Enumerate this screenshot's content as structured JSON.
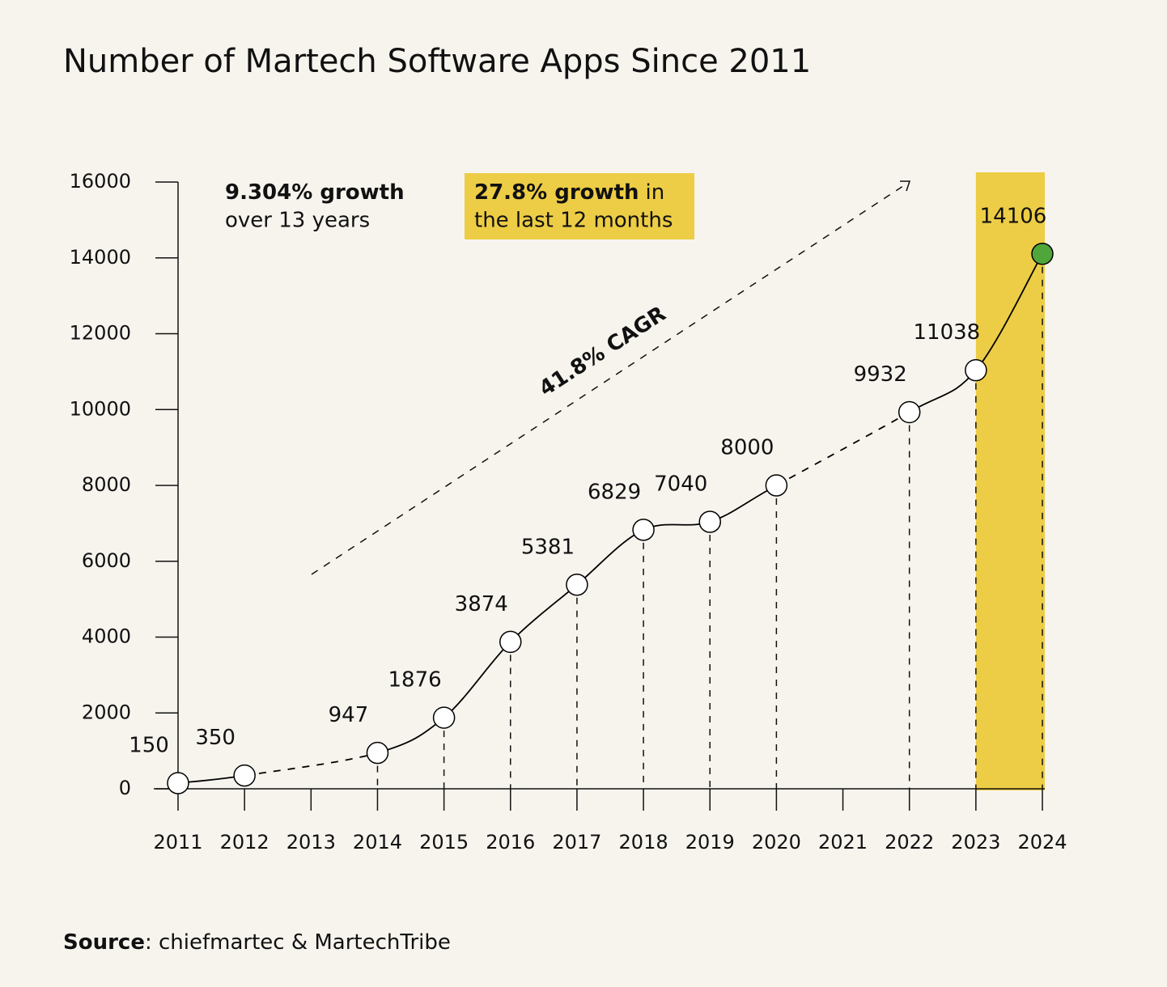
{
  "chart_data": {
    "type": "line",
    "title": "Number of Martech Software Apps Since 2011",
    "x": [
      2011,
      2012,
      2014,
      2015,
      2016,
      2017,
      2018,
      2019,
      2020,
      2022,
      2023,
      2024
    ],
    "series": [
      {
        "values": [
          150,
          350,
          947,
          1876,
          3874,
          5381,
          6829,
          7040,
          8000,
          9932,
          11038,
          14106
        ],
        "color": "#000000",
        "point_color": "#ffffff",
        "last_point_color": "#4fa63a"
      }
    ],
    "xlim": [
      2011,
      2024
    ],
    "xticks": [
      2011,
      2012,
      2013,
      2014,
      2015,
      2016,
      2017,
      2018,
      2019,
      2020,
      2021,
      2022,
      2023,
      2024
    ],
    "ylim": [
      0,
      16000
    ],
    "yticks": [
      0,
      2000,
      4000,
      6000,
      8000,
      10000,
      12000,
      14000,
      16000
    ],
    "highlight": {
      "x": [
        2023,
        2024
      ],
      "color": "#edcd45"
    },
    "annotations": [
      {
        "bold": "9.304% growth",
        "text": "over 13 years"
      },
      {
        "bold": "27.8% growth",
        "text": "in",
        "text2": "the last 12 months"
      },
      {
        "text": "41.8% CAGR"
      }
    ],
    "source": {
      "bold": "Source",
      "text": ": chiefmartec & MartechTribe"
    }
  }
}
